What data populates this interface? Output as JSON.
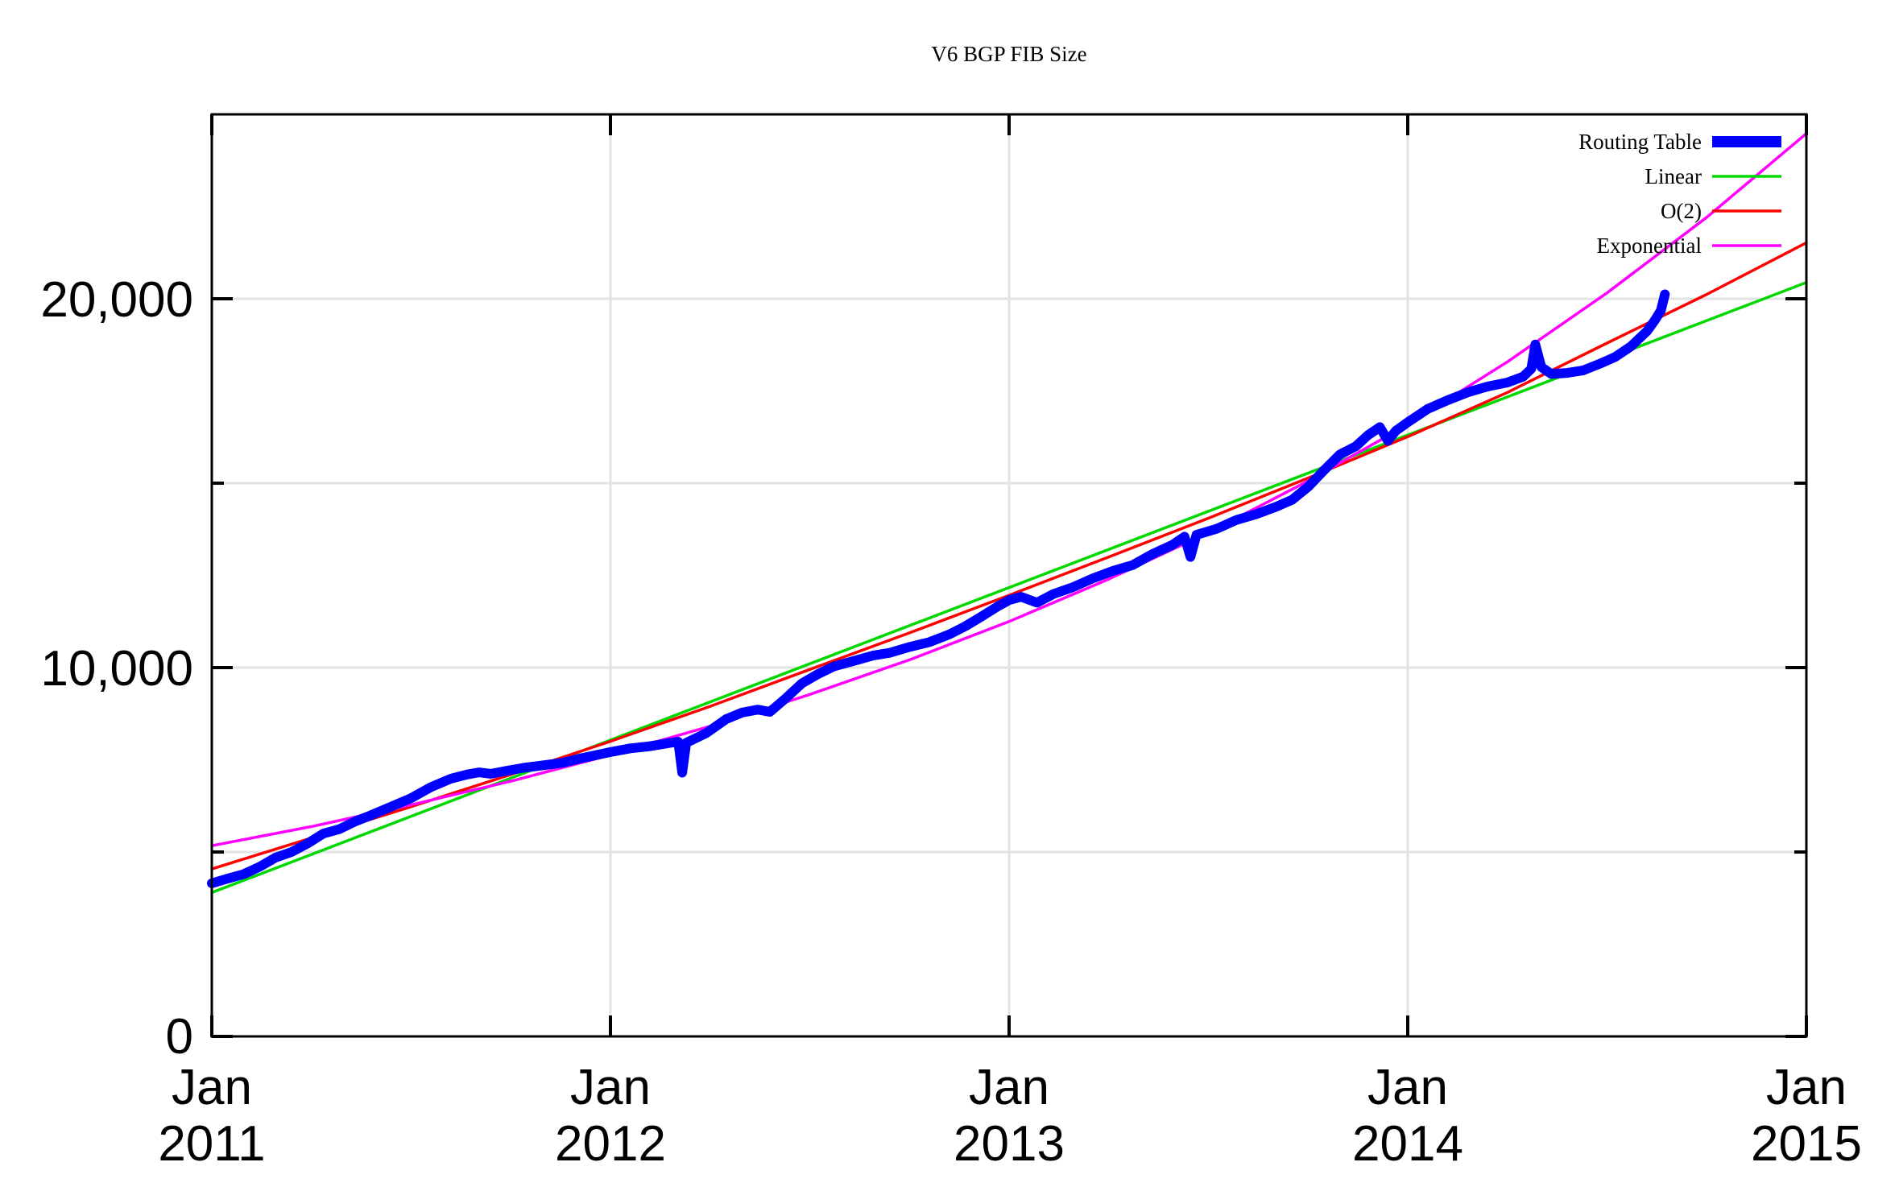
{
  "chart_data": {
    "type": "line",
    "title": "V6 BGP FIB Size",
    "grid": true,
    "legend_position": "top-right-inside",
    "x_axis": {
      "range": [
        2011,
        2015
      ],
      "ticks": [
        {
          "t": 2011,
          "month": "Jan",
          "year": "2011"
        },
        {
          "t": 2012,
          "month": "Jan",
          "year": "2012"
        },
        {
          "t": 2013,
          "month": "Jan",
          "year": "2013"
        },
        {
          "t": 2014,
          "month": "Jan",
          "year": "2014"
        },
        {
          "t": 2015,
          "month": "Jan",
          "year": "2015"
        }
      ],
      "gridline_years": [
        2012,
        2013,
        2014
      ]
    },
    "y_axis": {
      "range": [
        0,
        25000
      ],
      "ticks": [
        {
          "value": 0,
          "label": "0"
        },
        {
          "value": 10000,
          "label": "10,000"
        },
        {
          "value": 20000,
          "label": "20,000"
        }
      ],
      "minor_tick_values": [
        5000,
        15000
      ]
    },
    "colors": {
      "routing_table": "#0000ff",
      "linear": "#00d800",
      "o2": "#ff0000",
      "exponential": "#ff00ff",
      "gridline": "#e3e3e3",
      "frame": "#000000"
    },
    "series": [
      {
        "name": "Routing Table",
        "color": "#0000ff",
        "style": "thick",
        "points": [
          [
            2011.0,
            4150
          ],
          [
            2011.04,
            4280
          ],
          [
            2011.08,
            4400
          ],
          [
            2011.12,
            4600
          ],
          [
            2011.16,
            4850
          ],
          [
            2011.2,
            5000
          ],
          [
            2011.24,
            5230
          ],
          [
            2011.28,
            5500
          ],
          [
            2011.32,
            5620
          ],
          [
            2011.36,
            5830
          ],
          [
            2011.4,
            6000
          ],
          [
            2011.45,
            6230
          ],
          [
            2011.5,
            6460
          ],
          [
            2011.55,
            6760
          ],
          [
            2011.6,
            6990
          ],
          [
            2011.64,
            7100
          ],
          [
            2011.67,
            7160
          ],
          [
            2011.7,
            7120
          ],
          [
            2011.74,
            7200
          ],
          [
            2011.78,
            7280
          ],
          [
            2011.83,
            7350
          ],
          [
            2011.88,
            7420
          ],
          [
            2011.93,
            7550
          ],
          [
            2012.0,
            7710
          ],
          [
            2012.05,
            7810
          ],
          [
            2012.1,
            7870
          ],
          [
            2012.15,
            7960
          ],
          [
            2012.17,
            7990
          ],
          [
            2012.18,
            7150
          ],
          [
            2012.19,
            7960
          ],
          [
            2012.24,
            8220
          ],
          [
            2012.29,
            8600
          ],
          [
            2012.33,
            8780
          ],
          [
            2012.37,
            8860
          ],
          [
            2012.4,
            8800
          ],
          [
            2012.44,
            9170
          ],
          [
            2012.48,
            9570
          ],
          [
            2012.52,
            9820
          ],
          [
            2012.56,
            10030
          ],
          [
            2012.61,
            10180
          ],
          [
            2012.66,
            10330
          ],
          [
            2012.7,
            10400
          ],
          [
            2012.75,
            10560
          ],
          [
            2012.8,
            10690
          ],
          [
            2012.85,
            10900
          ],
          [
            2012.89,
            11120
          ],
          [
            2012.93,
            11380
          ],
          [
            2012.97,
            11650
          ],
          [
            2013.0,
            11830
          ],
          [
            2013.03,
            11920
          ],
          [
            2013.07,
            11760
          ],
          [
            2013.11,
            11990
          ],
          [
            2013.16,
            12180
          ],
          [
            2013.21,
            12420
          ],
          [
            2013.26,
            12620
          ],
          [
            2013.31,
            12780
          ],
          [
            2013.36,
            13080
          ],
          [
            2013.41,
            13330
          ],
          [
            2013.44,
            13550
          ],
          [
            2013.455,
            13000
          ],
          [
            2013.47,
            13600
          ],
          [
            2013.52,
            13760
          ],
          [
            2013.57,
            14000
          ],
          [
            2013.62,
            14160
          ],
          [
            2013.67,
            14360
          ],
          [
            2013.71,
            14550
          ],
          [
            2013.75,
            14900
          ],
          [
            2013.79,
            15350
          ],
          [
            2013.83,
            15780
          ],
          [
            2013.87,
            16000
          ],
          [
            2013.9,
            16300
          ],
          [
            2013.93,
            16520
          ],
          [
            2013.95,
            16150
          ],
          [
            2013.97,
            16420
          ],
          [
            2014.0,
            16650
          ],
          [
            2014.05,
            17010
          ],
          [
            2014.1,
            17250
          ],
          [
            2014.15,
            17460
          ],
          [
            2014.2,
            17620
          ],
          [
            2014.25,
            17730
          ],
          [
            2014.29,
            17890
          ],
          [
            2014.31,
            18100
          ],
          [
            2014.32,
            18760
          ],
          [
            2014.335,
            18150
          ],
          [
            2014.36,
            17960
          ],
          [
            2014.4,
            17990
          ],
          [
            2014.44,
            18060
          ],
          [
            2014.48,
            18230
          ],
          [
            2014.52,
            18420
          ],
          [
            2014.56,
            18710
          ],
          [
            2014.6,
            19120
          ],
          [
            2014.62,
            19420
          ],
          [
            2014.635,
            19680
          ],
          [
            2014.645,
            20120
          ]
        ]
      },
      {
        "name": "Linear",
        "color": "#00d800",
        "style": "thin",
        "points": [
          [
            2011,
            3900
          ],
          [
            2015,
            20440
          ]
        ]
      },
      {
        "name": "O(2)",
        "color": "#ff0000",
        "style": "thin",
        "points": [
          [
            2011,
            4540
          ],
          [
            2011.25,
            5380
          ],
          [
            2011.5,
            6230
          ],
          [
            2011.75,
            7100
          ],
          [
            2012,
            8000
          ],
          [
            2012.25,
            8950
          ],
          [
            2012.5,
            9950
          ],
          [
            2012.75,
            10940
          ],
          [
            2013,
            11960
          ],
          [
            2013.25,
            13000
          ],
          [
            2013.5,
            14050
          ],
          [
            2013.75,
            15140
          ],
          [
            2014,
            16260
          ],
          [
            2014.25,
            17460
          ],
          [
            2014.5,
            18800
          ],
          [
            2014.75,
            20120
          ],
          [
            2015,
            21520
          ]
        ]
      },
      {
        "name": "Exponential",
        "color": "#ff00ff",
        "style": "thin",
        "points": [
          [
            2011,
            5170
          ],
          [
            2011.25,
            5690
          ],
          [
            2011.5,
            6280
          ],
          [
            2011.75,
            6920
          ],
          [
            2012,
            7630
          ],
          [
            2012.25,
            8410
          ],
          [
            2012.5,
            9270
          ],
          [
            2012.75,
            10210
          ],
          [
            2013,
            11250
          ],
          [
            2013.25,
            12400
          ],
          [
            2013.5,
            13660
          ],
          [
            2013.75,
            15060
          ],
          [
            2014,
            16590
          ],
          [
            2014.25,
            18290
          ],
          [
            2014.5,
            20160
          ],
          [
            2014.75,
            22210
          ],
          [
            2015,
            24480
          ]
        ]
      }
    ]
  }
}
